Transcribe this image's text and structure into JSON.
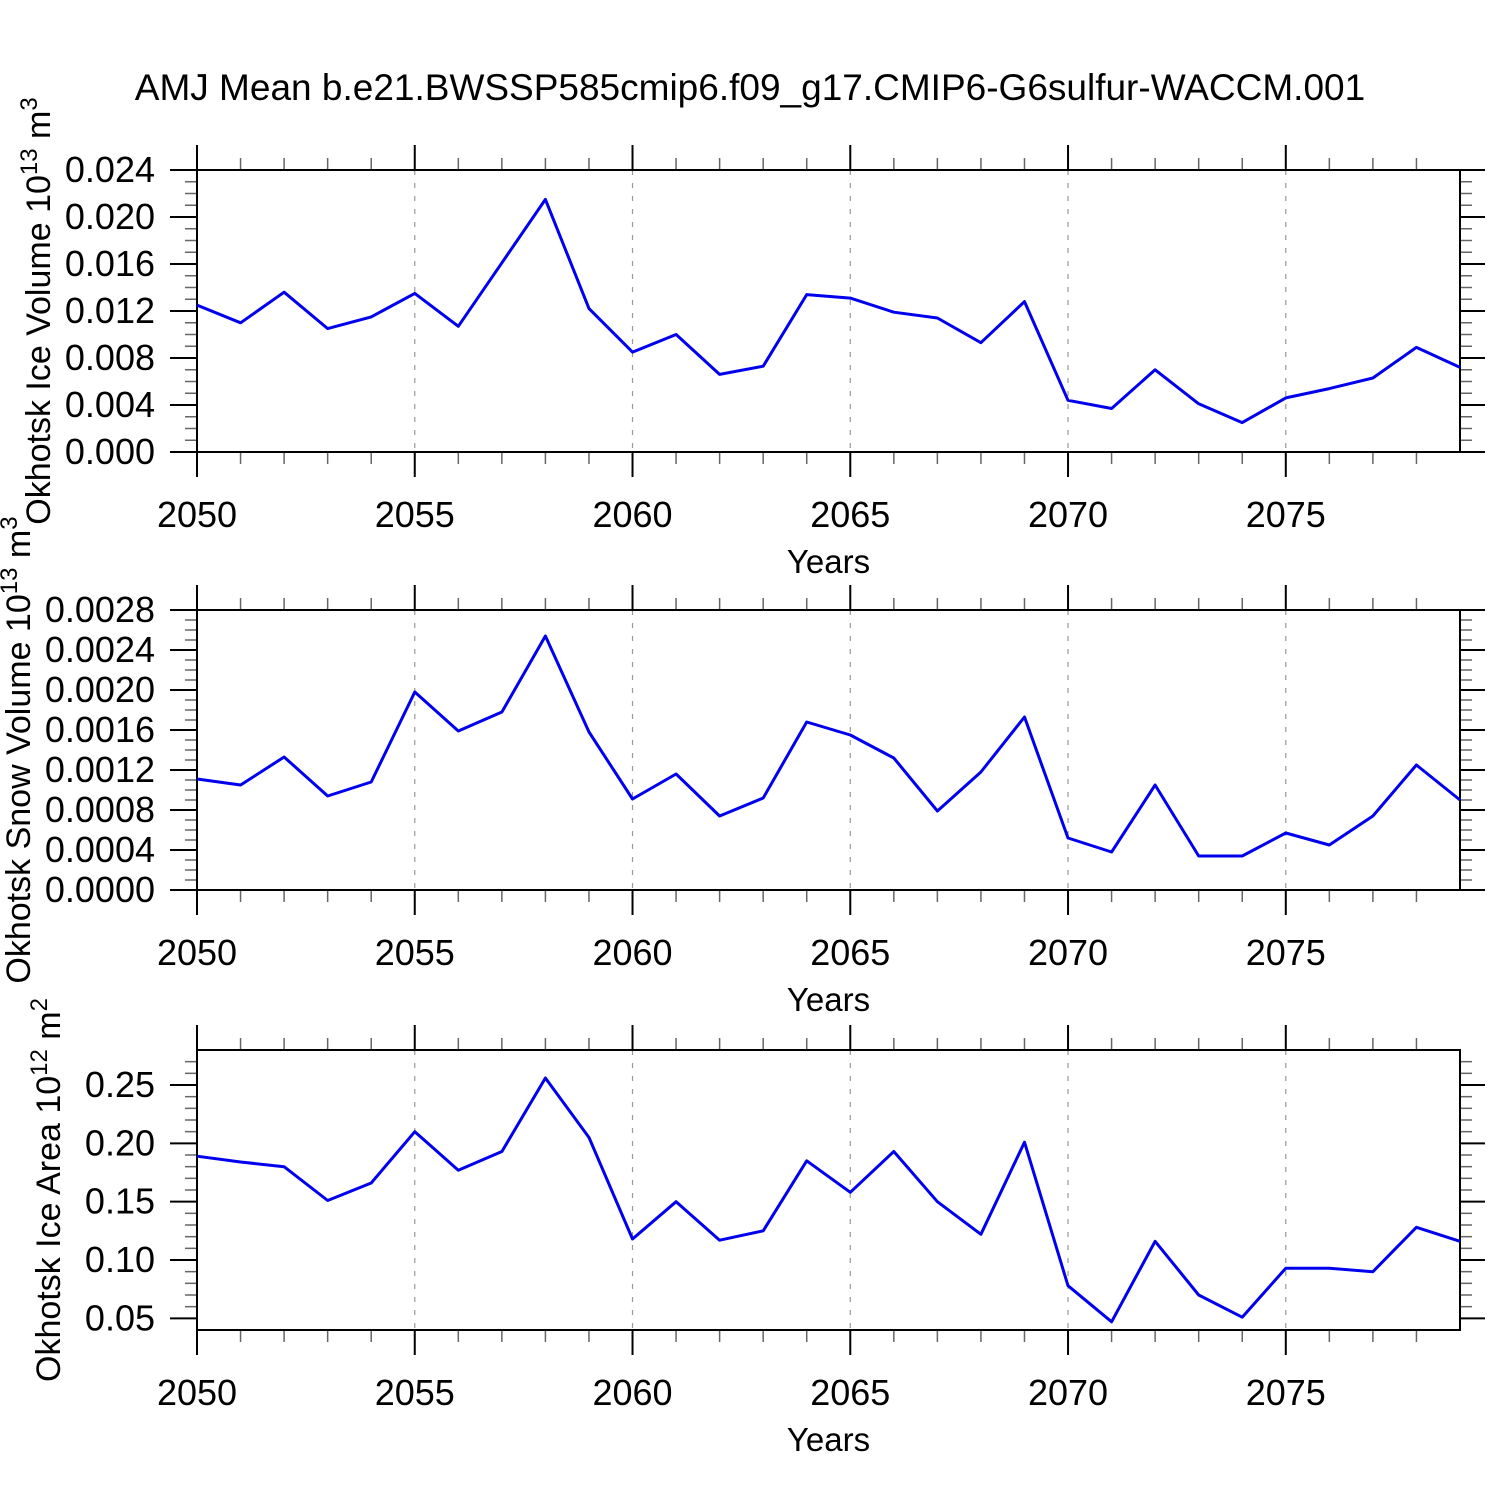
{
  "title": "AMJ Mean b.e21.BWSSP585cmip6.f09_g17.CMIP6-G6sulfur-WACCM.001",
  "line_color": "#0000ee",
  "chart_data": [
    {
      "type": "line",
      "panel": "ice-volume",
      "ylabel": "Okhotsk Ice Volume 10^13 m^3",
      "ylabel_parts": [
        {
          "t": "Okhotsk Ice Volume 10",
          "sup": false
        },
        {
          "t": "13",
          "sup": true
        },
        {
          "t": " m",
          "sup": false
        },
        {
          "t": "3",
          "sup": true
        }
      ],
      "xlabel": "Years",
      "xlim": [
        2050,
        2079
      ],
      "ylim": [
        0.0,
        0.024
      ],
      "xticks": [
        2050,
        2055,
        2060,
        2065,
        2070,
        2075
      ],
      "xminor_step": 1,
      "yticks": [
        0.0,
        0.004,
        0.008,
        0.012,
        0.016,
        0.02,
        0.024
      ],
      "ytick_labels": [
        "0.000",
        "0.004",
        "0.008",
        "0.012",
        "0.016",
        "0.020",
        "0.024"
      ],
      "yminor_step": 0.001,
      "grid": "vertical-dashed-at-major-xticks",
      "x": [
        2050,
        2051,
        2052,
        2053,
        2054,
        2055,
        2056,
        2057,
        2058,
        2059,
        2060,
        2061,
        2062,
        2063,
        2064,
        2065,
        2066,
        2067,
        2068,
        2069,
        2070,
        2071,
        2072,
        2073,
        2074,
        2075,
        2076,
        2077,
        2078,
        2079
      ],
      "values": [
        0.0125,
        0.011,
        0.0136,
        0.0105,
        0.0115,
        0.0135,
        0.0107,
        0.0161,
        0.0215,
        0.0122,
        0.0085,
        0.01,
        0.0066,
        0.0073,
        0.0134,
        0.0131,
        0.0119,
        0.0114,
        0.0093,
        0.0128,
        0.0044,
        0.0037,
        0.007,
        0.0041,
        0.0025,
        0.0046,
        0.0054,
        0.0063,
        0.0089,
        0.0072
      ]
    },
    {
      "type": "line",
      "panel": "snow-volume",
      "ylabel": "Okhotsk Snow Volume 10^13 m^3",
      "ylabel_parts": [
        {
          "t": "Okhotsk Snow Volume 10",
          "sup": false
        },
        {
          "t": "13",
          "sup": true
        },
        {
          "t": " m",
          "sup": false
        },
        {
          "t": "3",
          "sup": true
        }
      ],
      "xlabel": "Years",
      "xlim": [
        2050,
        2079
      ],
      "ylim": [
        0.0,
        0.0028
      ],
      "xticks": [
        2050,
        2055,
        2060,
        2065,
        2070,
        2075
      ],
      "xminor_step": 1,
      "yticks": [
        0.0,
        0.0004,
        0.0008,
        0.0012,
        0.0016,
        0.002,
        0.0024,
        0.0028
      ],
      "ytick_labels": [
        "0.0000",
        "0.0004",
        "0.0008",
        "0.0012",
        "0.0016",
        "0.0020",
        "0.0024",
        "0.0028"
      ],
      "yminor_step": 0.0001,
      "grid": "vertical-dashed-at-major-xticks",
      "x": [
        2050,
        2051,
        2052,
        2053,
        2054,
        2055,
        2056,
        2057,
        2058,
        2059,
        2060,
        2061,
        2062,
        2063,
        2064,
        2065,
        2066,
        2067,
        2068,
        2069,
        2070,
        2071,
        2072,
        2073,
        2074,
        2075,
        2076,
        2077,
        2078,
        2079
      ],
      "values": [
        0.00111,
        0.00105,
        0.00133,
        0.00094,
        0.00108,
        0.00198,
        0.00159,
        0.00178,
        0.00254,
        0.00158,
        0.00091,
        0.00116,
        0.00074,
        0.00092,
        0.00168,
        0.00155,
        0.00132,
        0.00079,
        0.00118,
        0.00173,
        0.00052,
        0.00038,
        0.00105,
        0.00034,
        0.00034,
        0.00057,
        0.00045,
        0.00074,
        0.00125,
        0.0009
      ]
    },
    {
      "type": "line",
      "panel": "ice-area",
      "ylabel": "Okhotsk Ice Area 10^12 m^2",
      "ylabel_parts": [
        {
          "t": "Okhotsk Ice Area 10",
          "sup": false
        },
        {
          "t": "12",
          "sup": true
        },
        {
          "t": " m",
          "sup": false
        },
        {
          "t": "2",
          "sup": true
        }
      ],
      "xlabel": "Years",
      "xlim": [
        2050,
        2079
      ],
      "ylim": [
        0.04,
        0.28
      ],
      "xticks": [
        2050,
        2055,
        2060,
        2065,
        2070,
        2075
      ],
      "xminor_step": 1,
      "yticks": [
        0.05,
        0.1,
        0.15,
        0.2,
        0.25
      ],
      "ytick_labels": [
        "0.05",
        "0.10",
        "0.15",
        "0.20",
        "0.25"
      ],
      "yminor_step": 0.01,
      "grid": "vertical-dashed-at-major-xticks",
      "x": [
        2050,
        2051,
        2052,
        2053,
        2054,
        2055,
        2056,
        2057,
        2058,
        2059,
        2060,
        2061,
        2062,
        2063,
        2064,
        2065,
        2066,
        2067,
        2068,
        2069,
        2070,
        2071,
        2072,
        2073,
        2074,
        2075,
        2076,
        2077,
        2078,
        2079
      ],
      "values": [
        0.189,
        0.184,
        0.18,
        0.151,
        0.166,
        0.21,
        0.177,
        0.193,
        0.256,
        0.205,
        0.118,
        0.15,
        0.117,
        0.125,
        0.185,
        0.158,
        0.193,
        0.15,
        0.122,
        0.201,
        0.078,
        0.047,
        0.116,
        0.07,
        0.051,
        0.093,
        0.093,
        0.09,
        0.128,
        0.116
      ]
    }
  ]
}
